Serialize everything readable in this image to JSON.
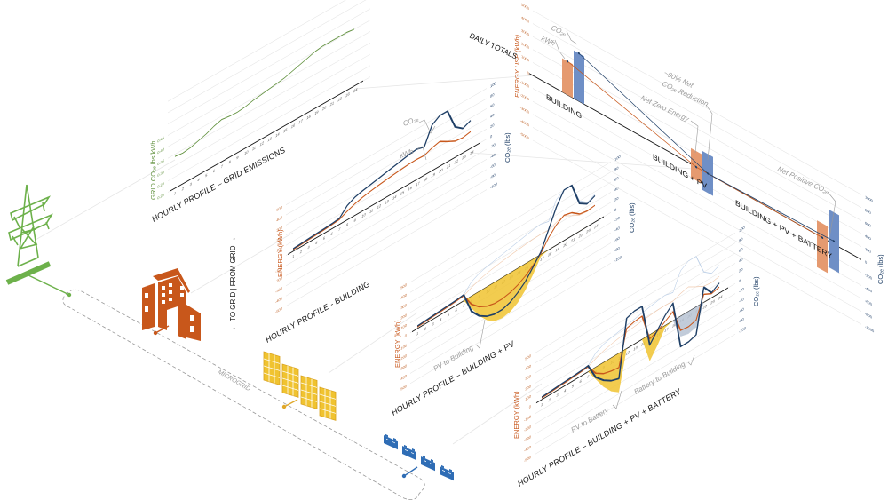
{
  "labels": {
    "grid_title": "HOURLY PROFILE – GRID EMISSIONS",
    "building_title": "HOURLY PROFILE - BUILDING",
    "bpv_title": "HOURLY PROFILE – BUILDING + PV",
    "bpvb_title": "HOURLY PROFILE – BUILDING + PV + BATTERY",
    "grid_ylabel": "GRID CO₂ₑ lbs/kWh",
    "energy_ylabel": "ENERGY (kWh)",
    "co2_ylabel": "CO₂ₑ (lbs)",
    "energy_use_ylabel": "ENERGY USE (kWh)",
    "daily_totals": "DAILY TOTALS",
    "to_from_grid": "← TO GRID  |  FROM GRID →",
    "microgrid": "MICROGRID",
    "co2_tag": "CO₂ₑ",
    "kwh_tag": "kWh",
    "pv_to_building": "PV to Building",
    "pv_to_battery": "PV to Battery",
    "battery_to_building": "Battery to Building",
    "reduction_note_1": "~90% Net",
    "reduction_note_2": "CO₂ₑ Reduction",
    "net_zero_energy": "Net Zero Energy",
    "net_positive": "Net Positive CO₂ₑ"
  },
  "colors": {
    "grid_green": "#5e8f3a",
    "tower_green": "#6db14b",
    "energy_orange": "#c8571b",
    "co2_blue": "#1f3f66",
    "pv_yellow": "#f0c330",
    "battery_blue": "#2f6db5",
    "bar_orange": "#e59a70",
    "bar_blue": "#6f8fc6"
  },
  "hours": [
    "1",
    "2",
    "3",
    "4",
    "5",
    "6",
    "7",
    "8",
    "9",
    "10",
    "11",
    "12",
    "13",
    "14",
    "15",
    "16",
    "17",
    "18",
    "19",
    "20",
    "21",
    "22",
    "23",
    "24"
  ],
  "chart_data": [
    {
      "type": "line",
      "title": "HOURLY PROFILE – GRID EMISSIONS",
      "ylabel": "GRID CO₂ₑ lbs/kWh",
      "yticks": [
        "0.20",
        "0.25",
        "0.30",
        "0.35",
        "0.40",
        "0.45"
      ],
      "ylim": [
        0.2,
        0.45
      ],
      "series": [
        {
          "name": "grid emissions",
          "values": [
            0.34,
            0.335,
            0.34,
            0.35,
            0.36,
            0.375,
            0.385,
            0.38,
            0.378,
            0.382,
            0.39,
            0.395,
            0.4,
            0.405,
            0.41,
            0.42,
            0.43,
            0.44,
            0.45,
            0.455,
            0.455,
            0.455,
            0.455,
            0.45
          ]
        }
      ]
    },
    {
      "type": "line",
      "title": "HOURLY PROFILE - BUILDING",
      "ylabel": "ENERGY (kWh)",
      "y2label": "CO₂ₑ (lbs)",
      "yticks": [
        "-500",
        "-400",
        "-300",
        "-200",
        "-100",
        "0",
        "100",
        "200",
        "300",
        "400",
        "500"
      ],
      "y2ticks": [
        "-100",
        "-80",
        "-60",
        "-40",
        "-20",
        "0",
        "20",
        "40",
        "60",
        "80",
        "100"
      ],
      "series": [
        {
          "name": "kWh",
          "values": [
            15,
            20,
            25,
            30,
            35,
            40,
            48,
            85,
            115,
            135,
            150,
            162,
            172,
            182,
            190,
            197,
            200,
            195,
            225,
            245,
            200,
            160,
            150,
            165
          ]
        },
        {
          "name": "CO₂ₑ",
          "values": [
            5,
            6,
            7,
            8,
            9,
            10,
            12,
            28,
            36,
            40,
            43,
            46,
            49,
            52,
            55,
            58,
            60,
            56,
            90,
            100,
            100,
            60,
            48,
            55
          ]
        }
      ]
    },
    {
      "type": "line",
      "title": "HOURLY PROFILE – BUILDING + PV",
      "ylabel": "ENERGY (kWh)",
      "y2label": "CO₂ₑ (lbs)",
      "yticks": [
        "-500",
        "-400",
        "-300",
        "-200",
        "-100",
        "0",
        "100",
        "200",
        "300",
        "400",
        "500"
      ],
      "y2ticks": [
        "-100",
        "-80",
        "-60",
        "-40",
        "-20",
        "0",
        "20",
        "40",
        "60",
        "80",
        "100"
      ],
      "series": [
        {
          "name": "kWh",
          "values": [
            15,
            20,
            25,
            30,
            35,
            40,
            48,
            -80,
            -150,
            -190,
            -210,
            -210,
            -195,
            -165,
            -120,
            -60,
            10,
            120,
            200,
            250,
            230,
            170,
            155,
            165
          ]
        },
        {
          "name": "CO₂ₑ",
          "values": [
            5,
            6,
            7,
            8,
            9,
            10,
            12,
            -30,
            -48,
            -58,
            -63,
            -63,
            -58,
            -48,
            -35,
            -15,
            5,
            40,
            75,
            100,
            100,
            55,
            45,
            52
          ]
        },
        {
          "name": "PV to Building",
          "values": [
            0,
            0,
            0,
            0,
            0,
            0,
            0,
            -120,
            -240,
            -330,
            -385,
            -400,
            -385,
            -340,
            -260,
            -150,
            -20,
            0,
            0,
            0,
            0,
            0,
            0,
            0
          ]
        }
      ]
    },
    {
      "type": "line",
      "title": "HOURLY PROFILE – BUILDING + PV + BATTERY",
      "ylabel": "ENERGY (kWh)",
      "y2label": "CO₂ₑ (lbs)",
      "yticks": [
        "-500",
        "-400",
        "-300",
        "-200",
        "-100",
        "0",
        "100",
        "200",
        "300",
        "400",
        "500"
      ],
      "y2ticks": [
        "-100",
        "-80",
        "-60",
        "-40",
        "-20",
        "0",
        "20",
        "40",
        "60",
        "80",
        "100"
      ],
      "series": [
        {
          "name": "kWh",
          "values": [
            15,
            20,
            25,
            30,
            35,
            40,
            48,
            -60,
            -110,
            -130,
            -140,
            200,
            220,
            230,
            -40,
            -10,
            40,
            90,
            -140,
            -150,
            -130,
            80,
            40,
            60
          ]
        },
        {
          "name": "CO₂ₑ",
          "values": [
            5,
            6,
            7,
            8,
            9,
            10,
            12,
            -20,
            -35,
            -45,
            -50,
            60,
            65,
            65,
            -20,
            0,
            20,
            35,
            -60,
            -60,
            -55,
            30,
            10,
            20
          ]
        },
        {
          "name": "PV to Battery",
          "values": [
            0,
            0,
            0,
            0,
            0,
            0,
            0,
            -120,
            -240,
            -330,
            -385,
            0,
            0,
            0,
            -260,
            -150,
            -20,
            0,
            0,
            0,
            0,
            0,
            0,
            0
          ]
        },
        {
          "name": "Battery to Building",
          "values": [
            0,
            0,
            0,
            0,
            0,
            0,
            0,
            0,
            0,
            0,
            0,
            0,
            0,
            0,
            0,
            0,
            0,
            0,
            -200,
            -220,
            -200,
            0,
            0,
            0
          ]
        }
      ]
    },
    {
      "type": "bar",
      "title": "DAILY TOTALS",
      "ylabel": "ENERGY USE (kWh)",
      "y2label": "CO₂ₑ (lbs)",
      "yticks": [
        "-5000",
        "-4000",
        "-3000",
        "-2000",
        "-1000",
        "0",
        "1000",
        "2000",
        "3000",
        "4000",
        "5000"
      ],
      "y2ticks": [
        "-1000",
        "-800",
        "-600",
        "-400",
        "-200",
        "0",
        "200",
        "400",
        "600",
        "800",
        "1000"
      ],
      "categories": [
        "BUILDING",
        "BUILDING + PV",
        "BUILDING + PV + BATTERY"
      ],
      "series": [
        {
          "name": "kWh",
          "ranges": [
            [
              0,
              2600
            ],
            [
              -1030,
              1230
            ],
            [
              -2500,
              1100
            ]
          ]
        },
        {
          "name": "CO₂ₑ",
          "ranges": [
            [
              0,
              740
            ],
            [
              -300,
              300
            ],
            [
              -400,
              490
            ]
          ]
        }
      ]
    }
  ]
}
